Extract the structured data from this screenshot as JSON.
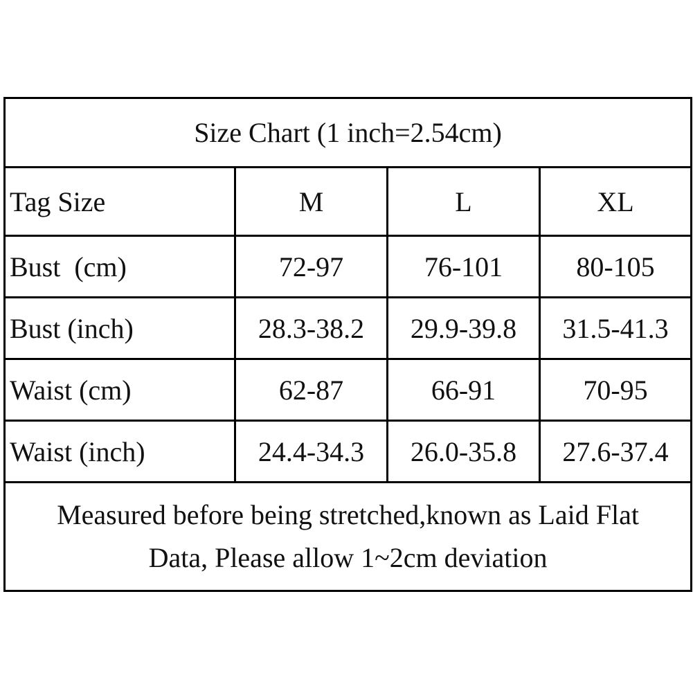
{
  "title": "Size Chart (1 inch=2.54cm)",
  "table": {
    "header": [
      "Tag Size",
      "M",
      "L",
      "XL"
    ],
    "rows": [
      [
        "Bust  (cm)",
        "72-97",
        "76-101",
        "80-105"
      ],
      [
        "Bust (inch)",
        "28.3-38.2",
        "29.9-39.8",
        "31.5-41.3"
      ],
      [
        "Waist (cm)",
        "62-87",
        "66-91",
        "70-95"
      ],
      [
        "Waist (inch)",
        "24.4-34.3",
        "26.0-35.8",
        "27.6-37.4"
      ]
    ]
  },
  "note": [
    "Measured before being stretched,known as Laid Flat",
    "Data, Please allow 1~2cm deviation"
  ]
}
